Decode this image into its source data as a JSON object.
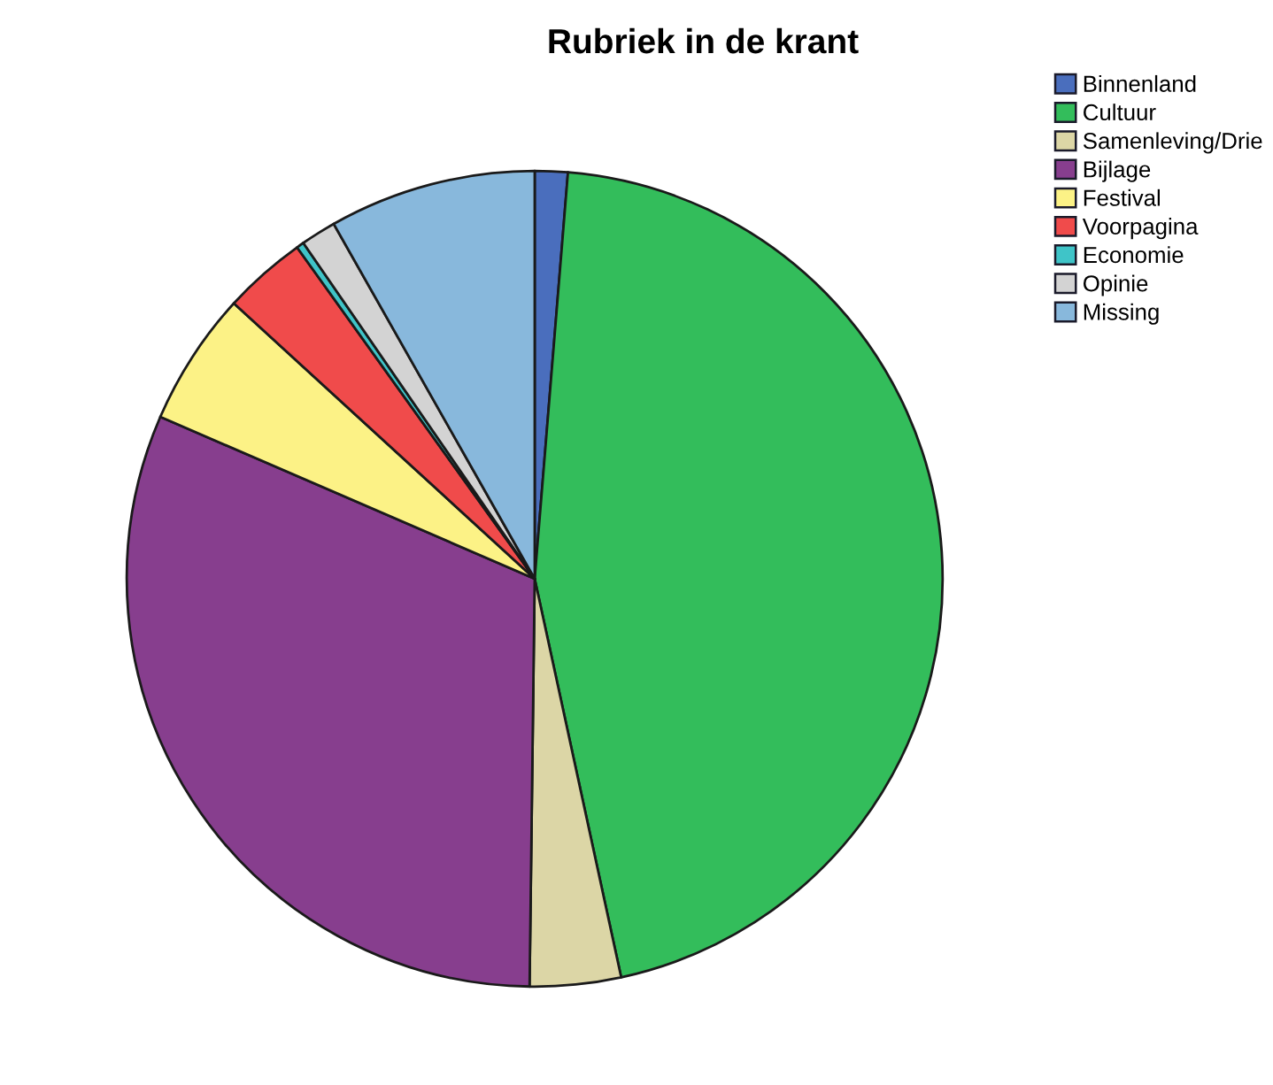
{
  "chart_data": {
    "type": "pie",
    "title": "Rubriek in de krant",
    "categories": [
      "Binnenland",
      "Cultuur",
      "Samenleving/Drie",
      "Bijlage",
      "Festival",
      "Voorpagina",
      "Economie",
      "Opinie",
      "Missing"
    ],
    "values": [
      1.3,
      45.3,
      3.6,
      31.3,
      5.3,
      3.3,
      0.3,
      1.4,
      8.2
    ],
    "colors": [
      "#4a6ebd",
      "#33bd5b",
      "#dcd6a6",
      "#873e8e",
      "#fcf286",
      "#f04b4b",
      "#3fc4c8",
      "#d3d3d3",
      "#88b8dc"
    ],
    "legend": "top right"
  }
}
